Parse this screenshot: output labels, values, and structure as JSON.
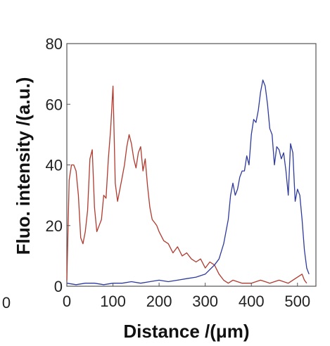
{
  "chart_data": {
    "type": "line",
    "title": "",
    "xlabel": "Distance /(μm)",
    "ylabel": "Fluo. intensity /(a.u.)",
    "xlim": [
      0,
      540
    ],
    "ylim": [
      0,
      80
    ],
    "xticks": [
      0,
      100,
      200,
      300,
      400,
      500
    ],
    "yticks": [
      0,
      20,
      40,
      60,
      80
    ],
    "outer_zero_label": "0",
    "grid": false,
    "legend": "none",
    "series": [
      {
        "color": "#b03a2e",
        "x": [
          0,
          5,
          10,
          15,
          20,
          25,
          30,
          35,
          40,
          45,
          50,
          55,
          60,
          65,
          70,
          75,
          80,
          85,
          90,
          95,
          100,
          105,
          110,
          115,
          120,
          125,
          130,
          135,
          140,
          145,
          150,
          155,
          160,
          165,
          170,
          175,
          180,
          185,
          190,
          195,
          200,
          210,
          220,
          230,
          240,
          250,
          260,
          270,
          280,
          290,
          300,
          310,
          320,
          330,
          340,
          350,
          360,
          380,
          400,
          420,
          440,
          460,
          480,
          500,
          510,
          515,
          520
        ],
        "values": [
          2,
          35,
          40,
          40,
          38,
          30,
          16,
          14,
          18,
          25,
          42,
          45,
          26,
          18,
          20,
          22,
          30,
          29,
          42,
          52,
          66,
          34,
          28,
          32,
          36,
          40,
          46,
          50,
          47,
          42,
          39,
          44,
          46,
          38,
          42,
          33,
          26,
          22,
          21,
          20,
          18,
          15,
          14,
          11,
          13,
          10,
          11,
          9,
          8,
          9,
          6,
          8,
          7,
          4,
          2,
          1,
          2,
          1,
          1,
          2,
          1,
          2,
          1,
          3,
          4,
          2,
          1
        ]
      },
      {
        "color": "#2e3a9c",
        "x": [
          0,
          20,
          40,
          60,
          80,
          100,
          120,
          140,
          160,
          180,
          200,
          220,
          240,
          260,
          280,
          300,
          320,
          330,
          340,
          350,
          355,
          360,
          365,
          370,
          375,
          380,
          385,
          390,
          395,
          400,
          405,
          410,
          415,
          420,
          425,
          430,
          435,
          440,
          445,
          450,
          455,
          460,
          465,
          470,
          475,
          480,
          485,
          490,
          495,
          500,
          505,
          510,
          515,
          520,
          525
        ],
        "values": [
          1,
          0.5,
          1,
          1,
          0.5,
          1,
          1,
          1.5,
          1,
          1.5,
          2,
          1.5,
          2,
          2.5,
          3,
          4,
          7,
          9,
          14,
          22,
          30,
          34,
          30,
          32,
          36,
          38,
          38,
          43,
          40,
          50,
          55,
          54,
          58,
          64,
          68,
          66,
          60,
          52,
          50,
          40,
          46,
          45,
          42,
          44,
          38,
          30,
          47,
          44,
          28,
          32,
          30,
          22,
          12,
          6,
          4
        ]
      }
    ]
  }
}
